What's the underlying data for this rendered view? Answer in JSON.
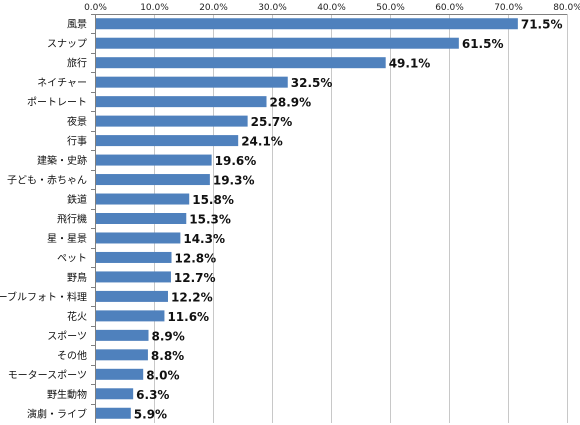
{
  "chart_data": {
    "type": "bar",
    "orientation": "horizontal",
    "title": "",
    "xlabel": "",
    "ylabel": "",
    "xlim": [
      0,
      80
    ],
    "grid": true,
    "legend": "none",
    "bar_color": "#4f81bd",
    "tick_labels": [
      "0.0%",
      "10.0%",
      "20.0%",
      "30.0%",
      "40.0%",
      "50.0%",
      "60.0%",
      "70.0%",
      "80.0%"
    ],
    "categories": [
      "風景",
      "スナップ",
      "旅行",
      "ネイチャー",
      "ポートレート",
      "夜景",
      "行事",
      "建築・史跡",
      "子ども・赤ちゃん",
      "鉄道",
      "飛行機",
      "星・星景",
      "ペット",
      "野鳥",
      "テーブルフォト・料理",
      "花火",
      "スポーツ",
      "その他",
      "モータースポーツ",
      "野生動物",
      "演劇・ライブ"
    ],
    "values": [
      71.5,
      61.5,
      49.1,
      32.5,
      28.9,
      25.7,
      24.1,
      19.6,
      19.3,
      15.8,
      15.3,
      14.3,
      12.8,
      12.7,
      12.2,
      11.6,
      8.9,
      8.8,
      8.0,
      6.3,
      5.9
    ],
    "value_labels": [
      "71.5%",
      "61.5%",
      "49.1%",
      "32.5%",
      "28.9%",
      "25.7%",
      "24.1%",
      "19.6%",
      "19.3%",
      "15.8%",
      "15.3%",
      "14.3%",
      "12.8%",
      "12.7%",
      "12.2%",
      "11.6%",
      "8.9%",
      "8.8%",
      "8.0%",
      "6.3%",
      "5.9%"
    ]
  }
}
